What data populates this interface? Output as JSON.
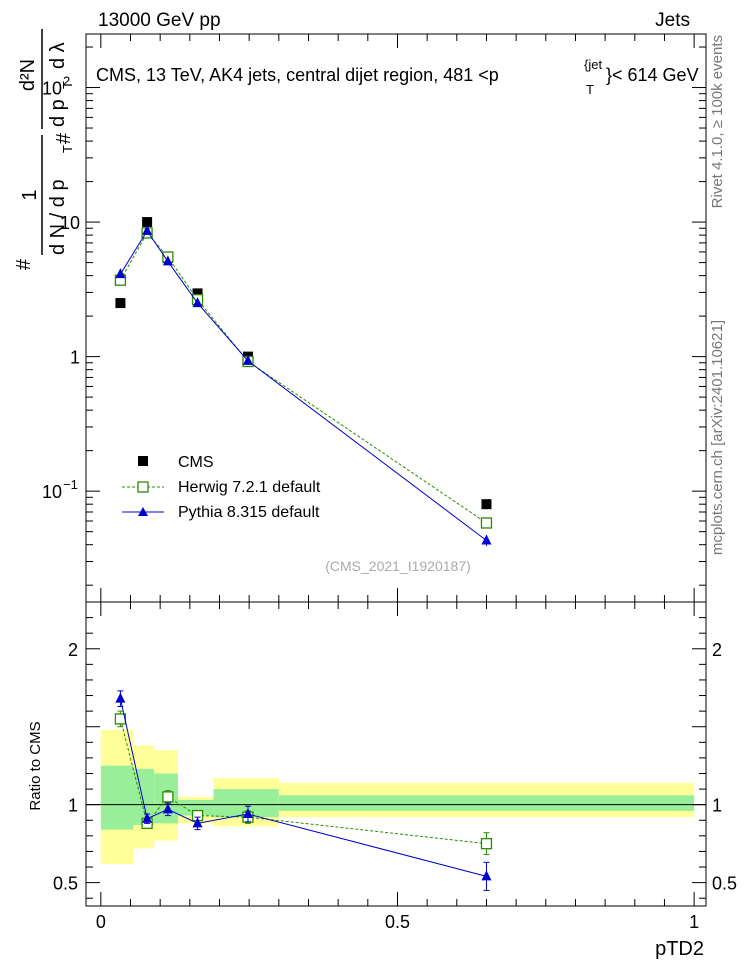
{
  "header": {
    "left": "13000 GeV pp",
    "right": "Jets"
  },
  "side_labels": {
    "rivet": "Rivet 4.1.0, ≥ 100k events",
    "mcplots": "mcplots.cern.ch [arXiv:2401.10621]"
  },
  "colors": {
    "data": "#000000",
    "herwig": "#2a8a00",
    "pythia": "#0000cc",
    "band_outer": "#ffff99",
    "band_inner": "#99ee99"
  },
  "chart_data": [
    {
      "type": "line",
      "panel": "main",
      "title": "CMS, 13 TeV, AK4 jets, central dijet region, 481 <p",
      "title_sup": "{jet",
      "title_sub": "T",
      "title_end": "}< 614 GeV",
      "ylabel_parts": [
        "1",
        "d N / d p",
        "T",
        "#",
        "d²N",
        "d p",
        "T",
        "d λ",
        "#"
      ],
      "yscale": "log",
      "ylim": [
        0.015,
        250
      ],
      "xlim": [
        -0.025,
        1.02
      ],
      "yticks": [
        {
          "value": 0.1,
          "base": "10",
          "exp": "−1"
        },
        {
          "value": 1,
          "label": "1"
        },
        {
          "value": 10,
          "label": "10"
        },
        {
          "value": 100,
          "base": "10",
          "exp": "2"
        }
      ],
      "watermark": "(CMS_2021_I1920187)",
      "legend_position": "lower-left",
      "series": [
        {
          "name": "CMS",
          "marker": "filled-square",
          "x": [
            0.033,
            0.078,
            0.113,
            0.163,
            0.248,
            0.65
          ],
          "y": [
            2.5,
            10.0,
            5.4,
            2.95,
            1.0,
            0.08
          ],
          "err": [
            0.1,
            0.3,
            0.2,
            0.12,
            0.04,
            0.005
          ]
        },
        {
          "name": "Herwig 7.2.1 default",
          "marker": "open-square",
          "style": "dashed",
          "x": [
            0.033,
            0.078,
            0.113,
            0.163,
            0.248,
            0.65
          ],
          "y": [
            3.7,
            8.3,
            5.5,
            2.65,
            0.92,
            0.058
          ],
          "err": [
            0.15,
            0.25,
            0.2,
            0.1,
            0.04,
            0.004
          ]
        },
        {
          "name": "Pythia 8.315 default",
          "marker": "filled-triangle",
          "style": "solid",
          "x": [
            0.033,
            0.078,
            0.113,
            0.163,
            0.248,
            0.65
          ],
          "y": [
            4.1,
            8.6,
            5.1,
            2.5,
            0.93,
            0.043
          ],
          "err": [
            0.15,
            0.25,
            0.2,
            0.1,
            0.04,
            0.004
          ]
        }
      ]
    },
    {
      "type": "line",
      "panel": "ratio",
      "ylabel": "Ratio to CMS",
      "xlabel": "pTD2",
      "ylim": [
        0.35,
        2.3
      ],
      "xlim": [
        -0.025,
        1.02
      ],
      "yticks": [
        0.5,
        1,
        2
      ],
      "ytick_labels": [
        "0.5",
        "1",
        "2"
      ],
      "xticks": [
        0,
        0.5,
        1
      ],
      "xtick_labels": [
        "0",
        "0.5",
        "1"
      ],
      "bands": [
        {
          "x0": 0.0,
          "x1": 0.055,
          "outer": [
            0.62,
            1.48
          ],
          "inner": [
            0.84,
            1.25
          ]
        },
        {
          "x0": 0.055,
          "x1": 0.09,
          "outer": [
            0.72,
            1.38
          ],
          "inner": [
            0.87,
            1.23
          ]
        },
        {
          "x0": 0.09,
          "x1": 0.13,
          "outer": [
            0.77,
            1.35
          ],
          "inner": [
            0.88,
            1.2
          ]
        },
        {
          "x0": 0.13,
          "x1": 0.19,
          "outer": [
            0.88,
            1.05
          ],
          "inner": [
            0.93,
            1.03
          ]
        },
        {
          "x0": 0.19,
          "x1": 0.3,
          "outer": [
            0.86,
            1.17
          ],
          "inner": [
            0.92,
            1.1
          ]
        },
        {
          "x0": 0.3,
          "x1": 1.0,
          "outer": [
            0.92,
            1.14
          ],
          "inner": [
            0.96,
            1.06
          ]
        }
      ],
      "series": [
        {
          "name": "Herwig 7.2.1 default",
          "marker": "open-square",
          "style": "dashed",
          "x": [
            0.033,
            0.078,
            0.113,
            0.163,
            0.248,
            0.65
          ],
          "y": [
            1.55,
            0.88,
            1.05,
            0.93,
            0.92,
            0.75
          ],
          "err": [
            0.05,
            0.03,
            0.04,
            0.03,
            0.04,
            0.07
          ]
        },
        {
          "name": "Pythia 8.315 default",
          "marker": "filled-triangle",
          "style": "solid",
          "x": [
            0.033,
            0.078,
            0.113,
            0.163,
            0.248,
            0.65
          ],
          "y": [
            1.68,
            0.91,
            0.97,
            0.88,
            0.94,
            0.54
          ],
          "err": [
            0.05,
            0.03,
            0.04,
            0.04,
            0.05,
            0.09
          ]
        }
      ]
    }
  ]
}
